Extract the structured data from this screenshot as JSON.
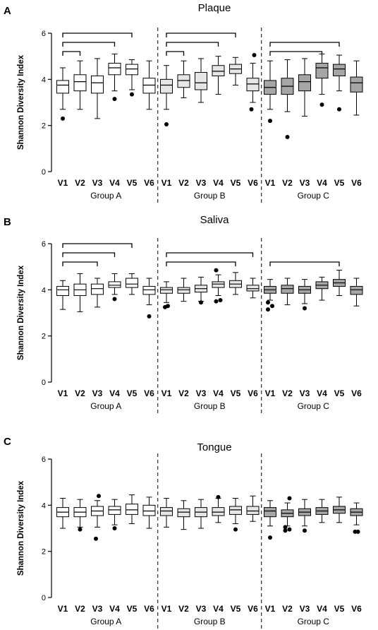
{
  "chart_data": [
    {
      "type": "box",
      "panel_label": "A",
      "title": "Plaque",
      "ylabel": "Shannon Diversity Index",
      "ylim": [
        0,
        6
      ],
      "yticks": [
        0,
        2,
        4,
        6
      ],
      "categories": [
        "V1",
        "V2",
        "V3",
        "V4",
        "V5",
        "V6"
      ],
      "groups": [
        {
          "name": "Group A",
          "fill": "#ffffff",
          "boxes": [
            {
              "min": 2.7,
              "q1": 3.4,
              "median": 3.75,
              "q3": 3.95,
              "max": 4.5,
              "outliers": [
                2.3
              ]
            },
            {
              "min": 2.7,
              "q1": 3.5,
              "median": 3.9,
              "q3": 4.2,
              "max": 4.8,
              "outliers": []
            },
            {
              "min": 2.3,
              "q1": 3.4,
              "median": 3.85,
              "q3": 4.15,
              "max": 4.9,
              "outliers": []
            },
            {
              "min": 3.5,
              "q1": 4.2,
              "median": 4.5,
              "q3": 4.7,
              "max": 5.1,
              "outliers": [
                3.15
              ]
            },
            {
              "min": 3.55,
              "q1": 4.2,
              "median": 4.45,
              "q3": 4.65,
              "max": 4.85,
              "outliers": [
                3.35
              ]
            },
            {
              "min": 2.7,
              "q1": 3.4,
              "median": 3.75,
              "q3": 4.05,
              "max": 4.8,
              "outliers": []
            }
          ],
          "comparisons": [
            [
              0,
              1
            ],
            [
              0,
              3
            ],
            [
              0,
              4
            ]
          ]
        },
        {
          "name": "Group B",
          "fill": "#e6e6e6",
          "boxes": [
            {
              "min": 2.7,
              "q1": 3.4,
              "median": 3.75,
              "q3": 4.0,
              "max": 4.6,
              "outliers": [
                2.05
              ]
            },
            {
              "min": 3.2,
              "q1": 3.65,
              "median": 3.95,
              "q3": 4.2,
              "max": 4.8,
              "outliers": []
            },
            {
              "min": 3.0,
              "q1": 3.55,
              "median": 3.85,
              "q3": 4.3,
              "max": 4.9,
              "outliers": []
            },
            {
              "min": 3.35,
              "q1": 4.15,
              "median": 4.35,
              "q3": 4.6,
              "max": 5.0,
              "outliers": []
            },
            {
              "min": 3.75,
              "q1": 4.25,
              "median": 4.45,
              "q3": 4.65,
              "max": 4.95,
              "outliers": []
            },
            {
              "min": 3.0,
              "q1": 3.5,
              "median": 3.8,
              "q3": 4.05,
              "max": 4.7,
              "outliers": [
                2.7,
                5.05
              ]
            }
          ],
          "comparisons": [
            [
              0,
              1
            ],
            [
              0,
              3
            ],
            [
              0,
              4
            ]
          ]
        },
        {
          "name": "Group C",
          "fill": "#a6a6a6",
          "boxes": [
            {
              "min": 2.7,
              "q1": 3.35,
              "median": 3.65,
              "q3": 3.95,
              "max": 4.8,
              "outliers": [
                2.2
              ]
            },
            {
              "min": 2.6,
              "q1": 3.35,
              "median": 3.7,
              "q3": 4.05,
              "max": 4.85,
              "outliers": [
                1.5
              ]
            },
            {
              "min": 2.4,
              "q1": 3.5,
              "median": 3.9,
              "q3": 4.2,
              "max": 4.9,
              "outliers": []
            },
            {
              "min": 3.35,
              "q1": 4.05,
              "median": 4.5,
              "q3": 4.7,
              "max": 5.1,
              "outliers": [
                2.9
              ]
            },
            {
              "min": 3.5,
              "q1": 4.15,
              "median": 4.45,
              "q3": 4.65,
              "max": 5.05,
              "outliers": [
                2.7
              ]
            },
            {
              "min": 2.45,
              "q1": 3.45,
              "median": 3.85,
              "q3": 4.1,
              "max": 4.8,
              "outliers": []
            }
          ],
          "comparisons": [
            [
              0,
              3
            ],
            [
              0,
              4
            ]
          ]
        }
      ]
    },
    {
      "type": "box",
      "panel_label": "B",
      "title": "Saliva",
      "ylabel": "Shannon Diversity Index",
      "ylim": [
        0,
        6
      ],
      "yticks": [
        0,
        2,
        4,
        6
      ],
      "categories": [
        "V1",
        "V2",
        "V3",
        "V4",
        "V5",
        "V6"
      ],
      "groups": [
        {
          "name": "Group A",
          "fill": "#ffffff",
          "boxes": [
            {
              "min": 3.15,
              "q1": 3.75,
              "median": 4.0,
              "q3": 4.15,
              "max": 4.4,
              "outliers": []
            },
            {
              "min": 3.05,
              "q1": 3.75,
              "median": 4.0,
              "q3": 4.25,
              "max": 4.7,
              "outliers": []
            },
            {
              "min": 3.25,
              "q1": 3.8,
              "median": 4.05,
              "q3": 4.25,
              "max": 4.5,
              "outliers": []
            },
            {
              "min": 3.8,
              "q1": 4.1,
              "median": 4.2,
              "q3": 4.35,
              "max": 4.7,
              "outliers": [
                3.6
              ]
            },
            {
              "min": 3.8,
              "q1": 4.1,
              "median": 4.25,
              "q3": 4.5,
              "max": 4.7,
              "outliers": []
            },
            {
              "min": 3.35,
              "q1": 3.8,
              "median": 4.0,
              "q3": 4.15,
              "max": 4.5,
              "outliers": [
                2.85
              ]
            }
          ],
          "comparisons": [
            [
              0,
              2
            ],
            [
              0,
              3
            ],
            [
              0,
              4
            ]
          ]
        },
        {
          "name": "Group B",
          "fill": "#e6e6e6",
          "boxes": [
            {
              "min": 3.45,
              "q1": 3.85,
              "median": 4.0,
              "q3": 4.1,
              "max": 4.35,
              "outliers": [
                3.25,
                3.3
              ]
            },
            {
              "min": 3.5,
              "q1": 3.85,
              "median": 4.0,
              "q3": 4.1,
              "max": 4.5,
              "outliers": []
            },
            {
              "min": 3.5,
              "q1": 3.9,
              "median": 4.05,
              "q3": 4.2,
              "max": 4.55,
              "outliers": [
                3.45
              ]
            },
            {
              "min": 3.75,
              "q1": 4.1,
              "median": 4.25,
              "q3": 4.35,
              "max": 4.65,
              "outliers": [
                3.5,
                3.55,
                4.85
              ]
            },
            {
              "min": 3.8,
              "q1": 4.1,
              "median": 4.25,
              "q3": 4.4,
              "max": 4.75,
              "outliers": []
            },
            {
              "min": 3.65,
              "q1": 3.95,
              "median": 4.05,
              "q3": 4.2,
              "max": 4.5,
              "outliers": []
            }
          ],
          "comparisons": [
            [
              0,
              4
            ],
            [
              0,
              5
            ]
          ]
        },
        {
          "name": "Group C",
          "fill": "#a6a6a6",
          "boxes": [
            {
              "min": 3.55,
              "q1": 3.85,
              "median": 4.0,
              "q3": 4.15,
              "max": 4.45,
              "outliers": [
                3.15,
                3.3,
                3.45
              ]
            },
            {
              "min": 3.35,
              "q1": 3.85,
              "median": 4.05,
              "q3": 4.2,
              "max": 4.5,
              "outliers": []
            },
            {
              "min": 3.4,
              "q1": 3.85,
              "median": 4.0,
              "q3": 4.15,
              "max": 4.45,
              "outliers": [
                3.2
              ]
            },
            {
              "min": 3.55,
              "q1": 4.05,
              "median": 4.2,
              "q3": 4.35,
              "max": 4.55,
              "outliers": []
            },
            {
              "min": 3.75,
              "q1": 4.15,
              "median": 4.3,
              "q3": 4.45,
              "max": 4.85,
              "outliers": []
            },
            {
              "min": 3.3,
              "q1": 3.8,
              "median": 4.0,
              "q3": 4.15,
              "max": 4.5,
              "outliers": []
            }
          ],
          "comparisons": [
            [
              0,
              4
            ]
          ]
        }
      ]
    },
    {
      "type": "box",
      "panel_label": "C",
      "title": "Tongue",
      "ylabel": "Shannon Diversity Index",
      "ylim": [
        0,
        6
      ],
      "yticks": [
        0,
        2,
        4,
        6
      ],
      "categories": [
        "V1",
        "V2",
        "V3",
        "V4",
        "V5",
        "V6"
      ],
      "groups": [
        {
          "name": "Group A",
          "fill": "#ffffff",
          "boxes": [
            {
              "min": 3.0,
              "q1": 3.5,
              "median": 3.7,
              "q3": 3.9,
              "max": 4.3,
              "outliers": []
            },
            {
              "min": 3.05,
              "q1": 3.5,
              "median": 3.7,
              "q3": 3.9,
              "max": 4.25,
              "outliers": [
                2.95
              ]
            },
            {
              "min": 3.05,
              "q1": 3.55,
              "median": 3.75,
              "q3": 3.95,
              "max": 4.2,
              "outliers": [
                2.55,
                4.4
              ]
            },
            {
              "min": 3.15,
              "q1": 3.6,
              "median": 3.8,
              "q3": 3.95,
              "max": 4.25,
              "outliers": [
                3.0
              ]
            },
            {
              "min": 3.2,
              "q1": 3.6,
              "median": 3.8,
              "q3": 4.05,
              "max": 4.45,
              "outliers": []
            },
            {
              "min": 3.0,
              "q1": 3.55,
              "median": 3.75,
              "q3": 4.0,
              "max": 4.35,
              "outliers": []
            }
          ],
          "comparisons": []
        },
        {
          "name": "Group B",
          "fill": "#e6e6e6",
          "boxes": [
            {
              "min": 3.05,
              "q1": 3.55,
              "median": 3.75,
              "q3": 3.9,
              "max": 4.3,
              "outliers": []
            },
            {
              "min": 2.95,
              "q1": 3.5,
              "median": 3.7,
              "q3": 3.85,
              "max": 4.2,
              "outliers": []
            },
            {
              "min": 3.0,
              "q1": 3.5,
              "median": 3.7,
              "q3": 3.9,
              "max": 4.25,
              "outliers": []
            },
            {
              "min": 3.25,
              "q1": 3.55,
              "median": 3.7,
              "q3": 3.9,
              "max": 4.3,
              "outliers": [
                4.35
              ]
            },
            {
              "min": 3.2,
              "q1": 3.6,
              "median": 3.8,
              "q3": 3.95,
              "max": 4.3,
              "outliers": [
                2.95
              ]
            },
            {
              "min": 3.3,
              "q1": 3.6,
              "median": 3.75,
              "q3": 3.95,
              "max": 4.4,
              "outliers": []
            }
          ],
          "comparisons": []
        },
        {
          "name": "Group C",
          "fill": "#a6a6a6",
          "boxes": [
            {
              "min": 3.1,
              "q1": 3.5,
              "median": 3.75,
              "q3": 3.9,
              "max": 4.2,
              "outliers": [
                2.6
              ]
            },
            {
              "min": 3.1,
              "q1": 3.5,
              "median": 3.65,
              "q3": 3.8,
              "max": 4.1,
              "outliers": [
                2.9,
                2.95,
                3.05,
                4.3
              ]
            },
            {
              "min": 3.1,
              "q1": 3.55,
              "median": 3.7,
              "q3": 3.85,
              "max": 4.25,
              "outliers": [
                2.9
              ]
            },
            {
              "min": 3.25,
              "q1": 3.6,
              "median": 3.75,
              "q3": 3.9,
              "max": 4.25,
              "outliers": []
            },
            {
              "min": 3.25,
              "q1": 3.65,
              "median": 3.8,
              "q3": 3.95,
              "max": 4.35,
              "outliers": []
            },
            {
              "min": 3.15,
              "q1": 3.55,
              "median": 3.7,
              "q3": 3.85,
              "max": 4.1,
              "outliers": [
                2.85,
                2.85
              ]
            }
          ],
          "comparisons": []
        }
      ]
    }
  ]
}
